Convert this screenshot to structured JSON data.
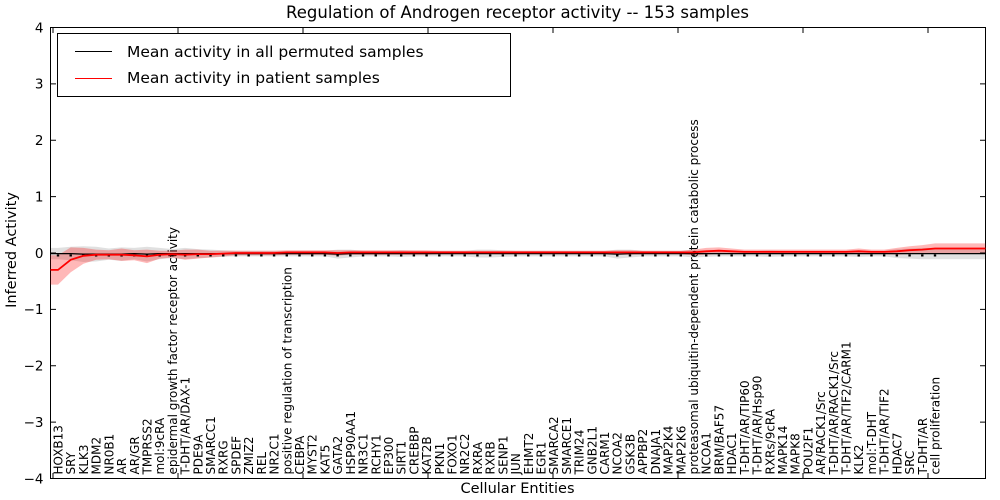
{
  "chart_data": {
    "type": "line",
    "title": "Regulation of Androgen receptor activity -- 153 samples",
    "xlabel": "Cellular Entities",
    "ylabel": "Inferred Activity",
    "ylim": [
      -4,
      4
    ],
    "yticks": [
      4,
      3,
      2,
      1,
      0,
      -1,
      -2,
      -3,
      -4
    ],
    "ytick_labels": [
      "4",
      "3",
      "2",
      "1",
      "0",
      "−1",
      "−2",
      "−3",
      "−4"
    ],
    "grid": false,
    "legend_position": "upper left",
    "zero_reference_line": true,
    "categories": [
      "HOXB13",
      "SRY",
      "KLK3",
      "MDM2",
      "NR0B1",
      "AR",
      "AR/GR",
      "TMPRSS2",
      "mol:9cRA",
      "epidermal growth factor receptor activity",
      "T-DHT/AR/DAX-1",
      "PDE9A",
      "SMARCC1",
      "RXRG",
      "SPDEF",
      "ZMIZ2",
      "REL",
      "NR2C1",
      "positive regulation of transcription",
      "CEBPA",
      "MYST2",
      "KAT5",
      "GATA2",
      "HSP90AA1",
      "NR3C1",
      "RCHY1",
      "EP300",
      "SIRT1",
      "CREBBP",
      "KAT2B",
      "PKN1",
      "FOXO1",
      "NR2C2",
      "RXRA",
      "RXRB",
      "SENP1",
      "JUN",
      "EHMT2",
      "EGR1",
      "SMARCA2",
      "SMARCE1",
      "TRIM24",
      "GNB2L1",
      "CARM1",
      "NCOA2",
      "GSK3B",
      "APPBP2",
      "DNAJA1",
      "MAP2K4",
      "MAP2K6",
      "proteasomal ubiquitin-dependent protein catabolic process",
      "NCOA1",
      "BRM/BAF57",
      "HDAC1",
      "T-DHT/AR/TIP60",
      "T-DHT/AR/Hsp90",
      "RXRs/9cRA",
      "MAPK14",
      "MAPK8",
      "POU2F1",
      "AR/RACK1/Src",
      "T-DHT/AR/RACK1/Src",
      "T-DHT/AR/TIF2/CARM1",
      "KLK2",
      "mol:T-DHT",
      "T-DHT/AR/TIF2",
      "HDAC7",
      "SRC",
      "T-DHT/AR",
      "cell proliferation"
    ],
    "series": [
      {
        "name": "Mean activity in all permuted samples",
        "color": "#000000",
        "band_color": "rgba(0,0,0,0.12)",
        "line_width": 1.2,
        "values": [
          -0.01,
          -0.01,
          -0.02,
          -0.02,
          -0.02,
          -0.02,
          -0.01,
          -0.02,
          -0.01,
          -0.01,
          -0.01,
          -0.01,
          -0.01,
          -0.01,
          -0.01,
          -0.01,
          -0.01,
          -0.01,
          -0.01,
          -0.01,
          -0.01,
          -0.01,
          -0.02,
          -0.01,
          -0.01,
          -0.01,
          -0.01,
          -0.01,
          -0.01,
          -0.01,
          -0.01,
          -0.01,
          -0.01,
          -0.01,
          -0.01,
          -0.01,
          -0.01,
          -0.01,
          -0.01,
          -0.01,
          -0.01,
          -0.01,
          -0.01,
          -0.01,
          -0.02,
          -0.01,
          -0.01,
          -0.01,
          -0.01,
          -0.01,
          -0.01,
          -0.01,
          -0.01,
          -0.01,
          -0.01,
          -0.01,
          -0.01,
          -0.01,
          -0.01,
          -0.01,
          -0.01,
          -0.01,
          -0.01,
          -0.01,
          -0.01,
          -0.01,
          -0.01,
          -0.01,
          -0.01,
          -0.01
        ],
        "band_halfwidth": [
          0.1,
          0.12,
          0.14,
          0.13,
          0.1,
          0.12,
          0.1,
          0.13,
          0.1,
          0.08,
          0.1,
          0.08,
          0.07,
          0.06,
          0.05,
          0.05,
          0.05,
          0.05,
          0.05,
          0.05,
          0.05,
          0.05,
          0.08,
          0.07,
          0.05,
          0.05,
          0.05,
          0.06,
          0.05,
          0.05,
          0.05,
          0.05,
          0.05,
          0.07,
          0.07,
          0.06,
          0.05,
          0.05,
          0.05,
          0.05,
          0.05,
          0.05,
          0.05,
          0.05,
          0.08,
          0.07,
          0.05,
          0.05,
          0.05,
          0.05,
          0.07,
          0.06,
          0.05,
          0.05,
          0.05,
          0.05,
          0.06,
          0.05,
          0.05,
          0.05,
          0.05,
          0.05,
          0.05,
          0.06,
          0.05,
          0.05,
          0.08,
          0.09,
          0.1,
          0.1
        ]
      },
      {
        "name": "Mean activity in patient samples",
        "color": "#ff0000",
        "band_color": "rgba(255,0,0,0.28)",
        "line_width": 1.8,
        "values": [
          -0.3,
          -0.12,
          -0.05,
          -0.03,
          -0.03,
          -0.03,
          -0.04,
          -0.06,
          -0.03,
          -0.02,
          -0.03,
          -0.02,
          -0.02,
          -0.01,
          0.0,
          0.0,
          0.0,
          0.0,
          0.01,
          0.01,
          0.01,
          0.01,
          0.0,
          0.01,
          0.01,
          0.01,
          0.01,
          0.01,
          0.01,
          0.01,
          0.01,
          0.01,
          0.01,
          0.01,
          0.01,
          0.01,
          0.01,
          0.01,
          0.01,
          0.01,
          0.01,
          0.01,
          0.01,
          0.01,
          0.01,
          0.01,
          0.01,
          0.01,
          0.01,
          0.01,
          0.01,
          0.03,
          0.04,
          0.03,
          0.02,
          0.02,
          0.02,
          0.02,
          0.02,
          0.02,
          0.02,
          0.02,
          0.02,
          0.03,
          0.02,
          0.02,
          0.03,
          0.05,
          0.06,
          0.08
        ],
        "band_halfwidth": [
          0.26,
          0.22,
          0.14,
          0.09,
          0.08,
          0.11,
          0.09,
          0.12,
          0.07,
          0.06,
          0.09,
          0.08,
          0.06,
          0.05,
          0.04,
          0.04,
          0.04,
          0.04,
          0.04,
          0.04,
          0.04,
          0.04,
          0.05,
          0.04,
          0.04,
          0.04,
          0.04,
          0.04,
          0.04,
          0.04,
          0.03,
          0.03,
          0.03,
          0.03,
          0.03,
          0.03,
          0.03,
          0.03,
          0.03,
          0.03,
          0.03,
          0.03,
          0.03,
          0.03,
          0.04,
          0.04,
          0.03,
          0.03,
          0.03,
          0.03,
          0.05,
          0.06,
          0.06,
          0.05,
          0.04,
          0.04,
          0.04,
          0.04,
          0.04,
          0.04,
          0.04,
          0.04,
          0.04,
          0.05,
          0.04,
          0.04,
          0.06,
          0.07,
          0.08,
          0.09
        ]
      }
    ]
  }
}
